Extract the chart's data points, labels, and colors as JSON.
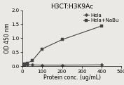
{
  "title": "H3CT:H3K9Ac",
  "xlabel": "Protein conc. (ug/mL)",
  "ylabel": "OD 450 nm",
  "xlim": [
    0,
    500
  ],
  "ylim": [
    0,
    2.0
  ],
  "xticks": [
    0,
    100,
    200,
    300,
    400,
    500
  ],
  "yticks": [
    0.0,
    0.5,
    1.0,
    1.5,
    2.0
  ],
  "hela": {
    "x": [
      0,
      6.25,
      12.5,
      25,
      50,
      100,
      200,
      400
    ],
    "y": [
      0.03,
      0.04,
      0.05,
      0.06,
      0.05,
      0.04,
      0.04,
      0.05
    ],
    "label": "Hela",
    "color": "#444444",
    "marker": "D",
    "linewidth": 0.8,
    "markersize": 2.5
  },
  "hela_nabu": {
    "x": [
      0,
      6.25,
      12.5,
      25,
      50,
      100,
      200,
      400
    ],
    "y": [
      0.03,
      0.06,
      0.08,
      0.12,
      0.2,
      0.62,
      0.95,
      1.44
    ],
    "label": "Hela+NaBu",
    "color": "#444444",
    "marker": "s",
    "linewidth": 0.8,
    "markersize": 2.5
  },
  "title_fontsize": 6.5,
  "axis_label_fontsize": 5.5,
  "tick_fontsize": 5.0,
  "legend_fontsize": 5.0,
  "background_color": "#ebe9e5",
  "plot_bg_color": "#ebe9e5"
}
